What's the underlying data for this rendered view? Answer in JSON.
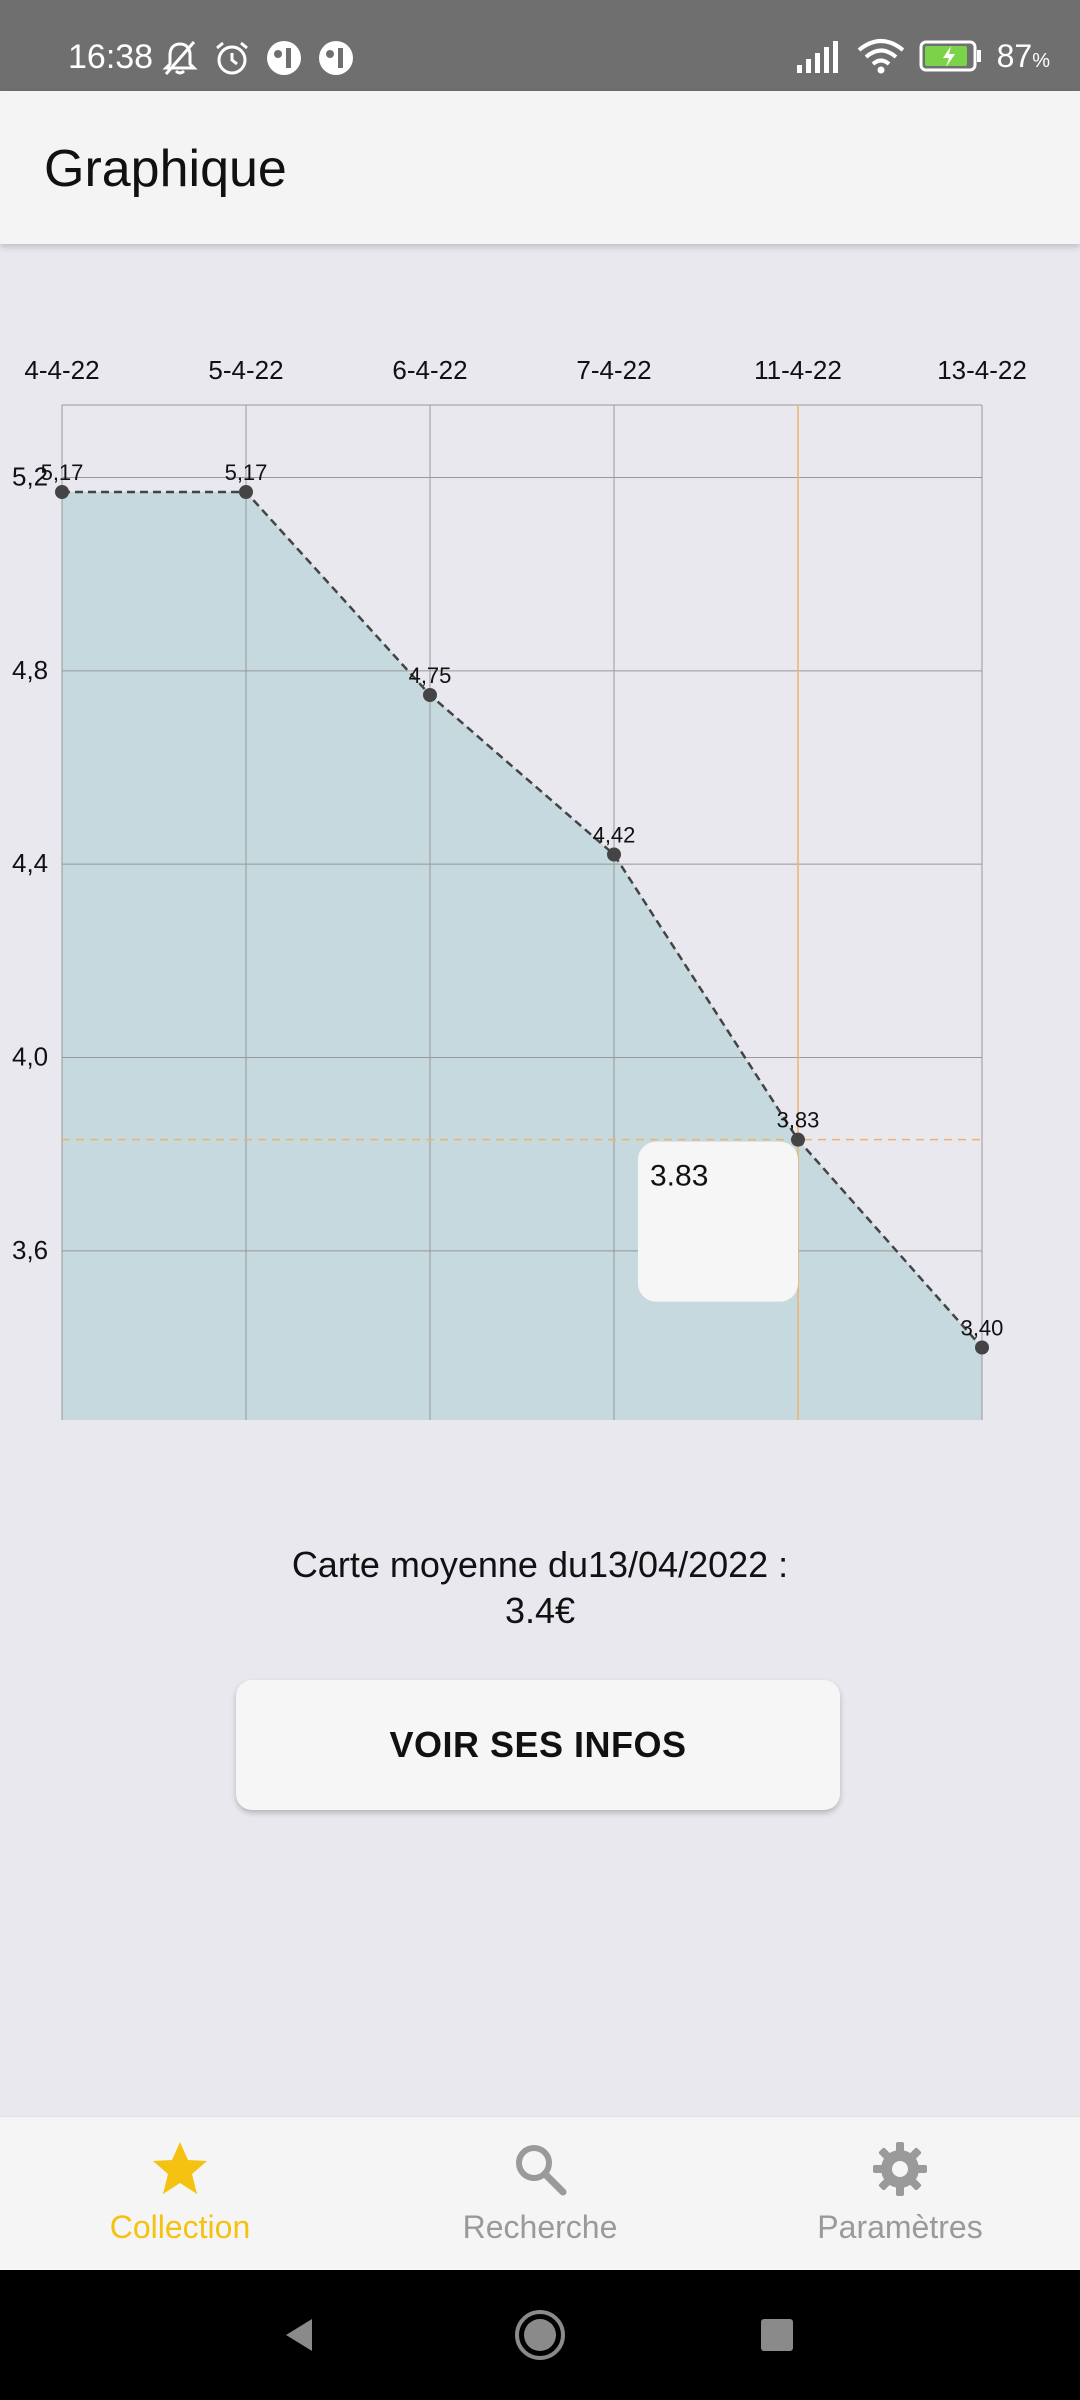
{
  "status_bar": {
    "time": "16:38",
    "battery_percent": "87",
    "battery_unit": "%"
  },
  "app_bar": {
    "title": "Graphique"
  },
  "chart_data": {
    "type": "area",
    "categories": [
      "4-4-22",
      "5-4-22",
      "6-4-22",
      "7-4-22",
      "11-4-22",
      "13-4-22"
    ],
    "values": [
      5.17,
      5.17,
      4.75,
      4.42,
      3.83,
      3.4
    ],
    "point_labels": [
      "5,17",
      "5,17",
      "4,75",
      "4,42",
      "3,83",
      "3,40"
    ],
    "y_ticks": [
      "5,2",
      "4,8",
      "4,4",
      "4,0",
      "3,6"
    ],
    "y_tick_values": [
      5.2,
      4.8,
      4.4,
      4.0,
      3.6
    ],
    "ylim": [
      3.25,
      5.35
    ],
    "grid": true,
    "x_axis_position": "top",
    "highlight": {
      "category": "11-4-22",
      "value": 3.83,
      "tooltip": "3.83"
    },
    "colors": {
      "fill": "#c5d9de",
      "line": "#444444",
      "grid": "#999999",
      "highlight": "#f0b36a"
    }
  },
  "summary": {
    "line1": "Carte moyenne du13/04/2022 :",
    "line2": "3.4€"
  },
  "info_button": {
    "label": "VOIR SES INFOS"
  },
  "bottom_nav": {
    "items": [
      {
        "label": "Collection",
        "icon": "star-icon",
        "active": true
      },
      {
        "label": "Recherche",
        "icon": "search-icon",
        "active": false
      },
      {
        "label": "Paramètres",
        "icon": "gear-icon",
        "active": false
      }
    ],
    "colors": {
      "active": "#f5c211",
      "inactive": "#9a9a9a"
    }
  }
}
